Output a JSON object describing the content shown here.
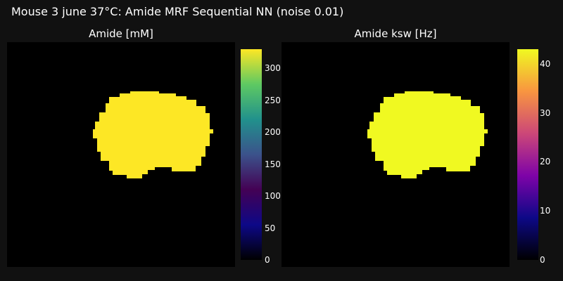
{
  "figure_title": "Mouse 3 june 37°C: Amide MRF Sequential NN (noise 0.01)",
  "colors": {
    "background": "#111111",
    "plot_background": "#000000",
    "viridis": [
      "#0d0887",
      "#440154",
      "#3b528b",
      "#21918c",
      "#5ec962",
      "#fde725"
    ],
    "plasma": [
      "#0d0887",
      "#7e03a8",
      "#cc4778",
      "#f89540",
      "#f0f921"
    ]
  },
  "chart_data": [
    {
      "type": "heatmap",
      "title": "Amide [mM]",
      "colorscale": "viridis",
      "colorbar_range": [
        0,
        330
      ],
      "colorbar_ticks": [
        "0",
        "50",
        "100",
        "150",
        "200",
        "250",
        "300"
      ],
      "tick_values": [
        0,
        50,
        100,
        150,
        200,
        250,
        300
      ],
      "region_value": 323,
      "region_color": "#fde725",
      "outside_value": 0
    },
    {
      "type": "heatmap",
      "title": "Amide ksw [Hz]",
      "colorscale": "plasma",
      "colorbar_range": [
        0,
        43
      ],
      "colorbar_ticks": [
        "0",
        "10",
        "20",
        "30",
        "40"
      ],
      "tick_values": [
        0,
        10,
        20,
        30,
        40
      ],
      "region_value": 43,
      "region_color": "#f0f921",
      "outside_value": 0
    }
  ]
}
